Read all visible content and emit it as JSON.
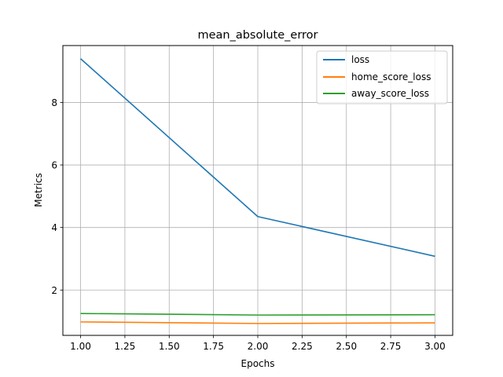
{
  "chart_data": {
    "type": "line",
    "title": "mean_absolute_error",
    "xlabel": "Epochs",
    "ylabel": "Metrics",
    "xlim": [
      0.9,
      3.1
    ],
    "ylim": [
      0.55,
      9.82
    ],
    "x_ticks": [
      {
        "value": 1.0,
        "label": "1.00"
      },
      {
        "value": 1.25,
        "label": "1.25"
      },
      {
        "value": 1.5,
        "label": "1.50"
      },
      {
        "value": 1.75,
        "label": "1.75"
      },
      {
        "value": 2.0,
        "label": "2.00"
      },
      {
        "value": 2.25,
        "label": "2.25"
      },
      {
        "value": 2.5,
        "label": "2.50"
      },
      {
        "value": 2.75,
        "label": "2.75"
      },
      {
        "value": 3.0,
        "label": "3.00"
      }
    ],
    "y_ticks": [
      {
        "value": 2,
        "label": "2"
      },
      {
        "value": 4,
        "label": "4"
      },
      {
        "value": 6,
        "label": "6"
      },
      {
        "value": 8,
        "label": "8"
      }
    ],
    "grid": true,
    "legend_position": "top-right",
    "x": [
      1,
      2,
      3
    ],
    "series": [
      {
        "name": "loss",
        "color": "#1f77b4",
        "values": [
          9.4,
          4.35,
          3.08
        ]
      },
      {
        "name": "home_score_loss",
        "color": "#ff7f0e",
        "values": [
          0.98,
          0.93,
          0.95
        ]
      },
      {
        "name": "away_score_loss",
        "color": "#2ca02c",
        "values": [
          1.25,
          1.2,
          1.21
        ]
      }
    ]
  }
}
